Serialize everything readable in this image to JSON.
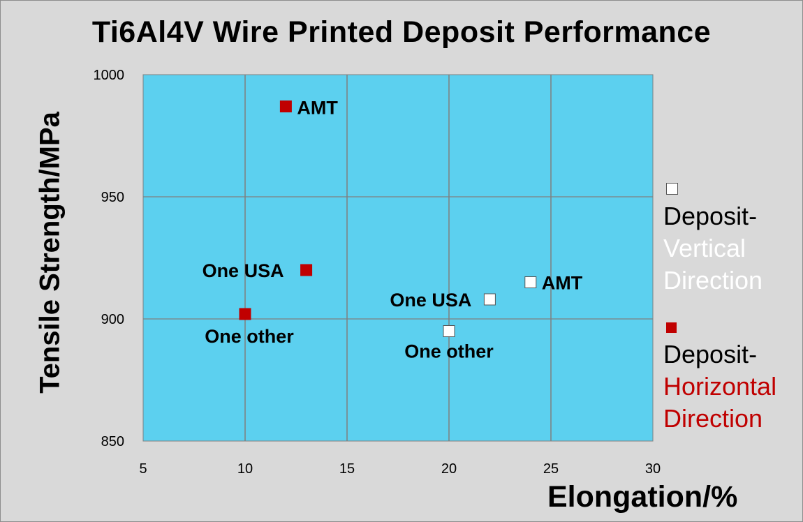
{
  "chart_data": {
    "type": "scatter",
    "title": "Ti6Al4V Wire Printed Deposit Performance",
    "xlabel": "Elongation/%",
    "ylabel": "Tensile Strength/MPa",
    "xlim": [
      5,
      30
    ],
    "ylim": [
      850,
      1000
    ],
    "xticks": [
      "5",
      "10",
      "15",
      "20",
      "25",
      "30"
    ],
    "yticks": [
      "850",
      "900",
      "950",
      "1000"
    ],
    "grid": true,
    "legend_position": "right",
    "series": [
      {
        "name": "Deposit-Vertical Direction",
        "legend_line1": "Deposit-",
        "legend_line2": "Vertical",
        "legend_line3": "Direction",
        "marker": "white-square",
        "color": "#ffffff",
        "points": [
          {
            "x": 24,
            "y": 915,
            "label": "AMT"
          },
          {
            "x": 22,
            "y": 908,
            "label": "One USA"
          },
          {
            "x": 20,
            "y": 895,
            "label": "One other"
          }
        ]
      },
      {
        "name": "Deposit-Horizontal Direction",
        "legend_line1": "Deposit-",
        "legend_line2": "Horizontal",
        "legend_line3": "Direction",
        "marker": "red-square",
        "color": "#c00000",
        "points": [
          {
            "x": 12,
            "y": 987,
            "label": "AMT"
          },
          {
            "x": 13,
            "y": 920,
            "label": "One USA"
          },
          {
            "x": 10,
            "y": 902,
            "label": "One other"
          }
        ]
      }
    ],
    "plot_background": "#5cd0ef",
    "grid_color": "#7f7f7f"
  }
}
